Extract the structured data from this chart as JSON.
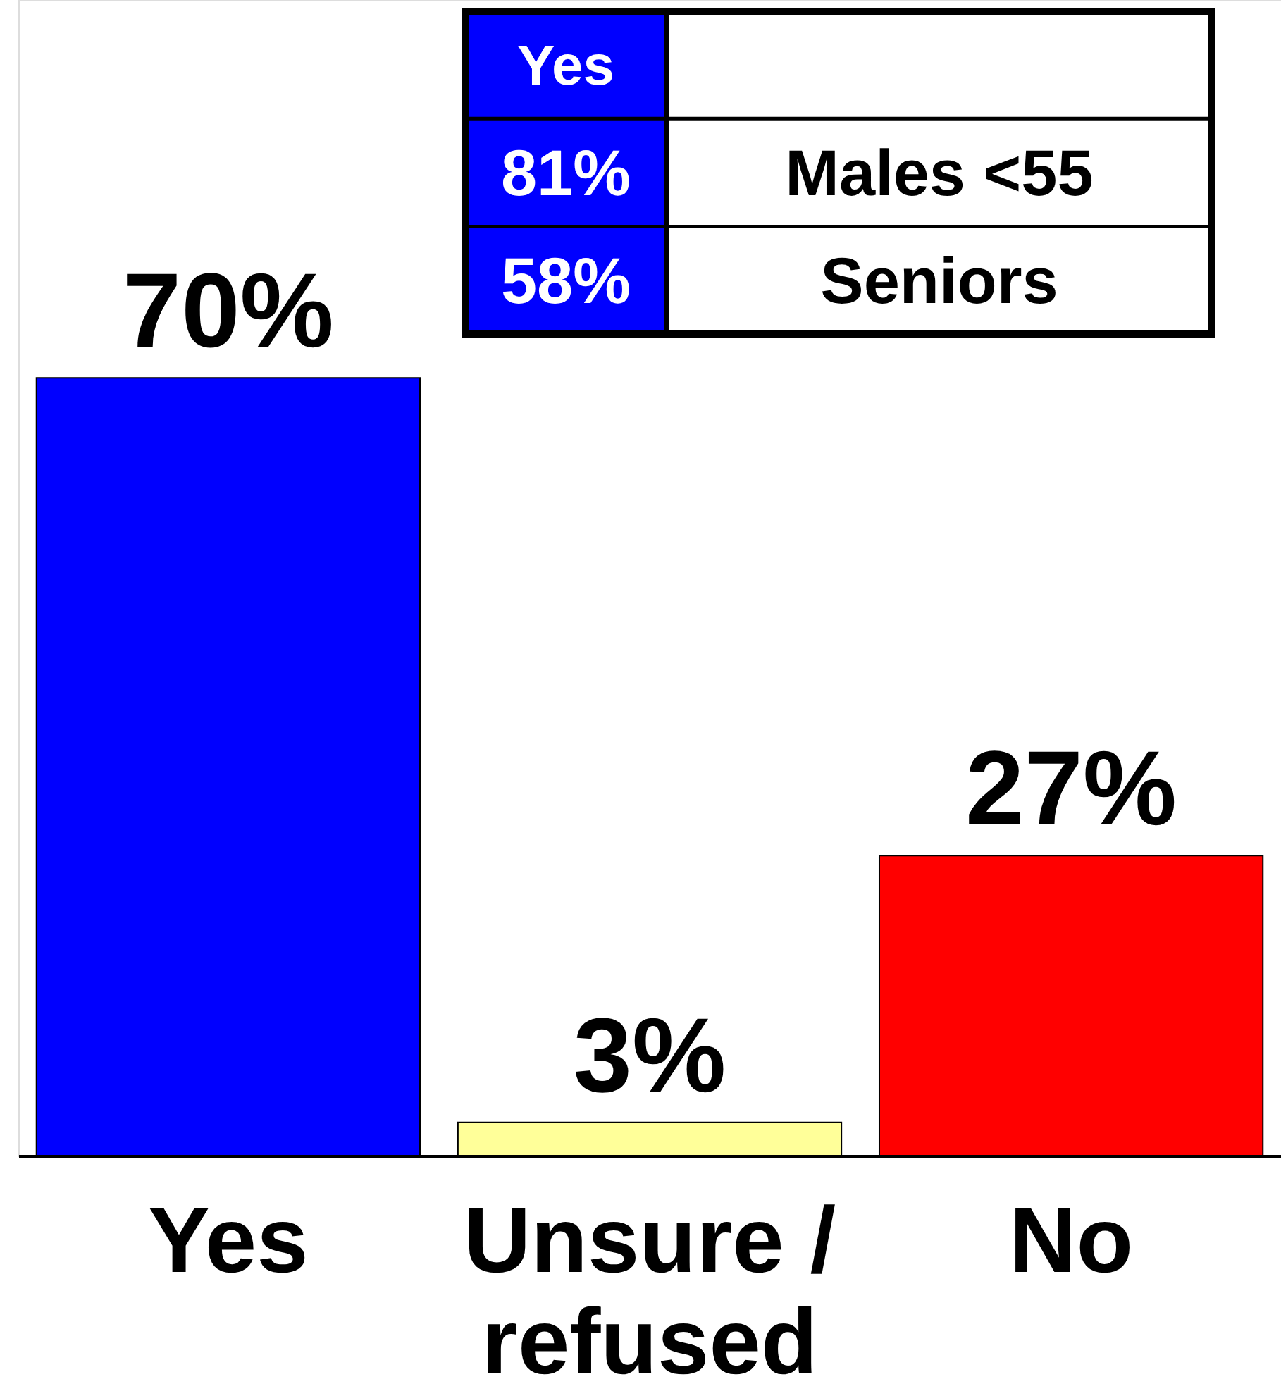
{
  "chart_data": {
    "type": "bar",
    "categories": [
      "Yes",
      "Unsure /\nrefused",
      "No"
    ],
    "values": [
      70,
      3,
      27
    ],
    "colors": [
      "#0000ff",
      "#ffff99",
      "#ff0000"
    ],
    "value_labels": [
      "70%",
      "3%",
      "27%"
    ],
    "ylim": [
      0,
      104
    ],
    "annotations": [
      "Yes",
      "81%",
      "Males <55",
      "58%",
      "Seniors"
    ]
  }
}
